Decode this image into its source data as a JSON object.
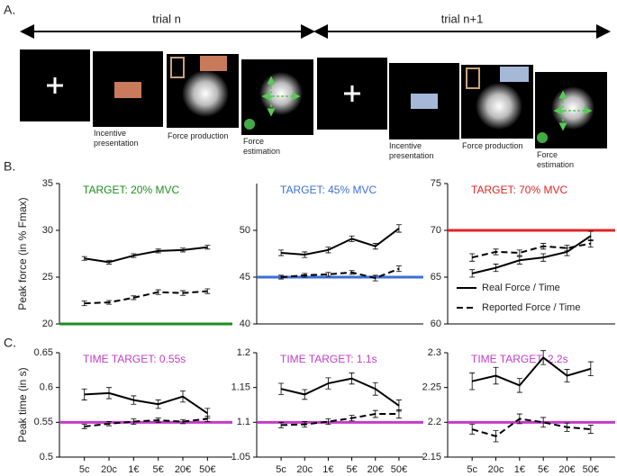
{
  "panel_labels": [
    "A.",
    "B.",
    "C."
  ],
  "timeline": {
    "trials": [
      "trial n",
      "trial n+1"
    ],
    "captions": [
      "Incentive presentation",
      "Force production",
      "Force estimation",
      "Incentive presentation",
      "Force production",
      "Force estimation"
    ]
  },
  "chart_data": [
    {
      "type": "line",
      "title": "TARGET: 20% MVC",
      "title_color": "#1e8c1e",
      "y_label": "Peak force (in % Fmax)",
      "categories": [
        null,
        null,
        null,
        null,
        null,
        null
      ],
      "ylim": [
        20,
        35
      ],
      "yticks": [
        20,
        25,
        30,
        35
      ],
      "target": 20,
      "target_color": "#1e8c1e",
      "series": [
        {
          "name": "Real Force / Time",
          "color": "#000000",
          "linestyle": "solid",
          "values": [
            27.0,
            26.6,
            27.3,
            27.8,
            27.9,
            28.2
          ],
          "errors": [
            0.2,
            0.2,
            0.2,
            0.2,
            0.2,
            0.2
          ]
        },
        {
          "name": "Reported Force / Time",
          "color": "#000000",
          "linestyle": "dashed",
          "values": [
            22.2,
            22.3,
            22.8,
            23.4,
            23.3,
            23.5
          ],
          "errors": [
            0.25,
            0.2,
            0.2,
            0.25,
            0.25,
            0.25
          ]
        }
      ]
    },
    {
      "type": "line",
      "title": "TARGET: 45% MVC",
      "title_color": "#3a6fd8",
      "categories": [
        null,
        null,
        null,
        null,
        null,
        null
      ],
      "ylim": [
        40,
        55
      ],
      "yticks": [
        40,
        45,
        50
      ],
      "target": 45,
      "target_color": "#3a6fd8",
      "series": [
        {
          "name": "Real Force / Time",
          "color": "#000000",
          "linestyle": "solid",
          "values": [
            47.6,
            47.4,
            47.9,
            49.1,
            48.3,
            50.2
          ],
          "errors": [
            0.3,
            0.3,
            0.3,
            0.3,
            0.3,
            0.4
          ]
        },
        {
          "name": "Reported Force / Time",
          "color": "#000000",
          "linestyle": "dashed",
          "values": [
            45.0,
            45.2,
            45.3,
            45.5,
            44.9,
            45.9
          ],
          "errors": [
            0.2,
            0.2,
            0.2,
            0.2,
            0.3,
            0.3
          ]
        }
      ]
    },
    {
      "type": "line",
      "title": "TARGET: 70% MVC",
      "title_color": "#e02424",
      "categories": [
        null,
        null,
        null,
        null,
        null,
        null
      ],
      "ylim": [
        60,
        75
      ],
      "yticks": [
        60,
        65,
        70,
        75
      ],
      "target": 70,
      "target_color": "#e02424",
      "legend": "lower right",
      "series": [
        {
          "name": "Real Force / Time",
          "color": "#000000",
          "linestyle": "solid",
          "values": [
            65.4,
            66.0,
            66.8,
            67.1,
            67.7,
            69.4
          ],
          "errors": [
            0.4,
            0.4,
            0.4,
            0.4,
            0.4,
            0.5
          ]
        },
        {
          "name": "Reported Force / Time",
          "color": "#000000",
          "linestyle": "dashed",
          "values": [
            67.1,
            67.7,
            67.6,
            68.3,
            68.1,
            68.6
          ],
          "errors": [
            0.4,
            0.3,
            0.3,
            0.3,
            0.3,
            0.4
          ]
        }
      ]
    },
    {
      "type": "line",
      "title": "TIME TARGET: 0.55s",
      "title_color": "#c23cc8",
      "y_label": "Peak time (in s)",
      "categories": [
        "5c",
        "20c",
        "1€",
        "5€",
        "20€",
        "50€"
      ],
      "ylim": [
        0.5,
        0.65
      ],
      "yticks": [
        0.5,
        0.55,
        0.6,
        0.65
      ],
      "target": 0.55,
      "target_color": "#c23cc8",
      "series": [
        {
          "name": "Real Force / Time",
          "color": "#000000",
          "linestyle": "solid",
          "values": [
            0.59,
            0.592,
            0.582,
            0.576,
            0.587,
            0.563
          ],
          "errors": [
            0.008,
            0.008,
            0.006,
            0.006,
            0.008,
            0.007
          ]
        },
        {
          "name": "Reported Force / Time",
          "color": "#000000",
          "linestyle": "dashed",
          "values": [
            0.544,
            0.548,
            0.551,
            0.553,
            0.551,
            0.555
          ],
          "errors": [
            0.003,
            0.003,
            0.004,
            0.003,
            0.003,
            0.004
          ]
        }
      ]
    },
    {
      "type": "line",
      "title": "TIME TARGET: 1.1s",
      "title_color": "#c23cc8",
      "categories": [
        "5c",
        "20c",
        "1€",
        "5€",
        "20€",
        "50€"
      ],
      "ylim": [
        1.05,
        1.2
      ],
      "yticks": [
        1.05,
        1.1,
        1.15,
        1.2
      ],
      "target": 1.1,
      "target_color": "#c23cc8",
      "series": [
        {
          "name": "Real Force / Time",
          "color": "#000000",
          "linestyle": "solid",
          "values": [
            1.148,
            1.14,
            1.156,
            1.163,
            1.148,
            1.124
          ],
          "errors": [
            0.008,
            0.007,
            0.008,
            0.008,
            0.009,
            0.008
          ]
        },
        {
          "name": "Reported Force / Time",
          "color": "#000000",
          "linestyle": "dashed",
          "values": [
            1.096,
            1.097,
            1.101,
            1.106,
            1.112,
            1.112
          ],
          "errors": [
            0.004,
            0.004,
            0.004,
            0.004,
            0.005,
            0.006
          ]
        }
      ]
    },
    {
      "type": "line",
      "title": "TIME TARGET: 2.2s",
      "title_color": "#c23cc8",
      "categories": [
        "5c",
        "20c",
        "1€",
        "5€",
        "20€",
        "50€"
      ],
      "ylim": [
        2.15,
        2.3
      ],
      "yticks": [
        2.15,
        2.2,
        2.25,
        2.3
      ],
      "target": 2.2,
      "target_color": "#c23cc8",
      "series": [
        {
          "name": "Real Force / Time",
          "color": "#000000",
          "linestyle": "solid",
          "values": [
            2.259,
            2.267,
            2.253,
            2.293,
            2.267,
            2.277
          ],
          "errors": [
            0.012,
            0.012,
            0.01,
            0.01,
            0.009,
            0.01
          ]
        },
        {
          "name": "Reported Force / Time",
          "color": "#000000",
          "linestyle": "dashed",
          "values": [
            2.19,
            2.18,
            2.205,
            2.2,
            2.193,
            2.19
          ],
          "errors": [
            0.007,
            0.008,
            0.007,
            0.007,
            0.006,
            0.006
          ]
        }
      ]
    }
  ]
}
